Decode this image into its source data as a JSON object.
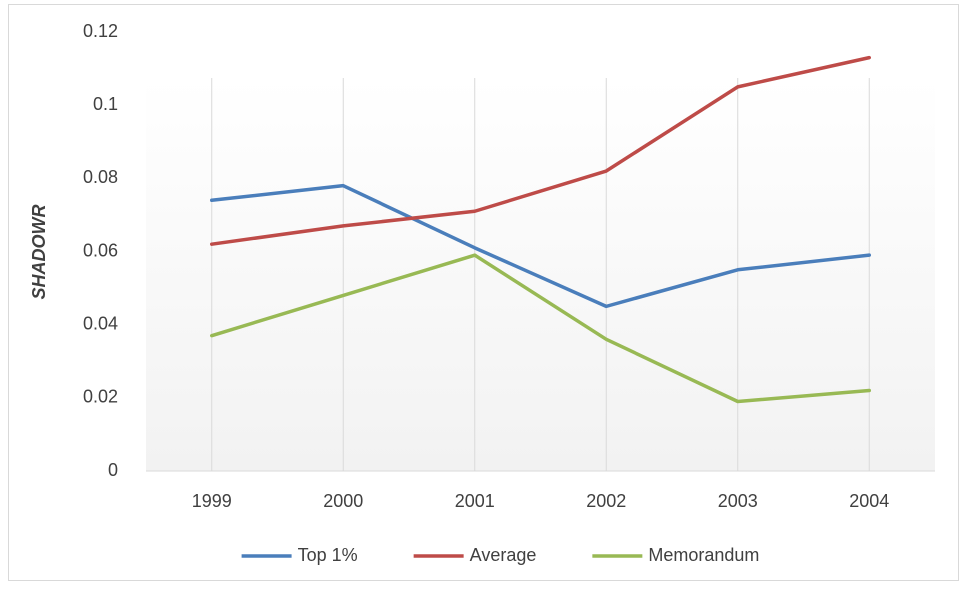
{
  "chart_data": {
    "type": "line",
    "y_label": "SHADOWR",
    "categories": [
      "1999",
      "2000",
      "2001",
      "2002",
      "2003",
      "2004"
    ],
    "series": [
      {
        "name": "Top 1%",
        "color": "#4a7ebb",
        "values": [
          0.074,
          0.078,
          0.061,
          0.045,
          0.055,
          0.059
        ]
      },
      {
        "name": "Average",
        "color": "#be4b48",
        "values": [
          0.062,
          0.067,
          0.071,
          0.082,
          0.105,
          0.113
        ]
      },
      {
        "name": "Memorandum",
        "color": "#98b954",
        "values": [
          0.037,
          0.048,
          0.059,
          0.036,
          0.019,
          0.022
        ]
      }
    ],
    "ylim": [
      0,
      0.12
    ],
    "yticks": [
      0,
      0.02,
      0.04,
      0.06,
      0.08,
      0.1,
      0.12
    ],
    "category_grid": true,
    "legend": "bottom"
  }
}
